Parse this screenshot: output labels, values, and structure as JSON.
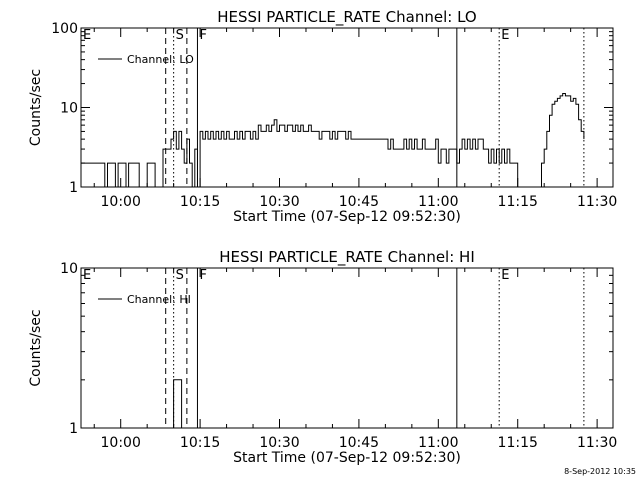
{
  "chart_data": [
    {
      "type": "line",
      "title": "HESSI PARTICLE_RATE Channel: LO",
      "xlabel": "Start Time (07-Sep-12 09:52:30)",
      "ylabel": "Counts/sec",
      "yscale": "log",
      "xlim": [
        "09:52:30",
        "11:33:00"
      ],
      "ylim": [
        1,
        100
      ],
      "x_ticks": [
        "10:00",
        "10:15",
        "10:30",
        "10:45",
        "11:00",
        "11:15",
        "11:30"
      ],
      "y_ticks": [
        "1",
        "10",
        "100"
      ],
      "legend": "top-left",
      "markers": [
        {
          "label": "E",
          "time": "09:52:30",
          "style": "none"
        },
        {
          "label": "",
          "time": "10:08:30",
          "style": "dashed"
        },
        {
          "label": "S",
          "time": "10:10:00",
          "style": "dotted"
        },
        {
          "label": "",
          "time": "10:12:30",
          "style": "dashed"
        },
        {
          "label": "F",
          "time": "10:14:30",
          "style": "solid"
        },
        {
          "label": "",
          "time": "11:03:30",
          "style": "solid"
        },
        {
          "label": "E",
          "time": "11:11:30",
          "style": "dotted"
        },
        {
          "label": "",
          "time": "11:27:30",
          "style": "dotted"
        }
      ],
      "series": [
        {
          "name": "Channel: LO",
          "points": [
            [
              "09:52:30",
              2
            ],
            [
              "09:56:30",
              2
            ],
            [
              "09:57:00",
              1
            ],
            [
              "09:57:30",
              2
            ],
            [
              "09:58:30",
              2
            ],
            [
              "09:59:00",
              1
            ],
            [
              "09:59:30",
              2
            ],
            [
              "10:00:30",
              2
            ],
            [
              "10:01:00",
              1
            ],
            [
              "10:01:30",
              2
            ],
            [
              "10:03:00",
              2
            ],
            [
              "10:03:30",
              1
            ],
            [
              "10:04:30",
              1
            ],
            [
              "10:05:00",
              2
            ],
            [
              "10:06:00",
              2
            ],
            [
              "10:06:30",
              1
            ],
            [
              "10:07:30",
              1
            ],
            [
              "10:08:00",
              3
            ],
            [
              "10:09:00",
              3
            ],
            [
              "10:09:30",
              4
            ],
            [
              "10:10:00",
              5
            ],
            [
              "10:10:30",
              3
            ],
            [
              "10:11:00",
              5
            ],
            [
              "10:11:30",
              3
            ],
            [
              "10:12:00",
              2
            ],
            [
              "10:12:30",
              4
            ],
            [
              "10:13:00",
              2
            ],
            [
              "10:13:30",
              1
            ],
            [
              "10:14:00",
              3
            ],
            [
              "10:14:30",
              1
            ],
            [
              "10:15:00",
              5
            ],
            [
              "10:15:30",
              4
            ],
            [
              "10:16:00",
              5
            ],
            [
              "10:16:30",
              4
            ],
            [
              "10:17:00",
              5
            ],
            [
              "10:17:30",
              4
            ],
            [
              "10:18:00",
              5
            ],
            [
              "10:18:30",
              4
            ],
            [
              "10:19:00",
              5
            ],
            [
              "10:19:30",
              4
            ],
            [
              "10:20:00",
              5
            ],
            [
              "10:20:30",
              4
            ],
            [
              "10:21:00",
              4
            ],
            [
              "10:21:30",
              5
            ],
            [
              "10:22:00",
              4
            ],
            [
              "10:22:30",
              5
            ],
            [
              "10:23:00",
              4
            ],
            [
              "10:23:30",
              5
            ],
            [
              "10:24:00",
              5
            ],
            [
              "10:24:30",
              4
            ],
            [
              "10:25:00",
              5
            ],
            [
              "10:25:30",
              4
            ],
            [
              "10:26:00",
              6
            ],
            [
              "10:26:30",
              5
            ],
            [
              "10:27:00",
              5
            ],
            [
              "10:27:30",
              6
            ],
            [
              "10:28:00",
              5
            ],
            [
              "10:28:30",
              6
            ],
            [
              "10:29:00",
              7
            ],
            [
              "10:29:30",
              5
            ],
            [
              "10:30:00",
              6
            ],
            [
              "10:30:30",
              6
            ],
            [
              "10:31:00",
              5
            ],
            [
              "10:31:30",
              6
            ],
            [
              "10:32:00",
              6
            ],
            [
              "10:32:30",
              5
            ],
            [
              "10:33:00",
              6
            ],
            [
              "10:33:30",
              5
            ],
            [
              "10:34:00",
              6
            ],
            [
              "10:34:30",
              5
            ],
            [
              "10:35:00",
              5
            ],
            [
              "10:35:30",
              6
            ],
            [
              "10:36:00",
              5
            ],
            [
              "10:36:30",
              5
            ],
            [
              "10:37:00",
              5
            ],
            [
              "10:37:30",
              4
            ],
            [
              "10:38:00",
              5
            ],
            [
              "10:39:00",
              5
            ],
            [
              "10:39:30",
              4
            ],
            [
              "10:40:00",
              5
            ],
            [
              "10:40:30",
              4
            ],
            [
              "10:41:00",
              5
            ],
            [
              "10:42:00",
              5
            ],
            [
              "10:42:30",
              4
            ],
            [
              "10:43:00",
              5
            ],
            [
              "10:43:30",
              4
            ],
            [
              "10:44:00",
              4
            ],
            [
              "10:45:00",
              4
            ],
            [
              "10:46:00",
              4
            ],
            [
              "10:47:00",
              4
            ],
            [
              "10:48:00",
              4
            ],
            [
              "10:49:00",
              4
            ],
            [
              "10:50:00",
              4
            ],
            [
              "10:50:30",
              3
            ],
            [
              "10:51:00",
              4
            ],
            [
              "10:51:30",
              3
            ],
            [
              "10:52:00",
              3
            ],
            [
              "10:53:00",
              3
            ],
            [
              "10:53:30",
              4
            ],
            [
              "10:54:00",
              3
            ],
            [
              "10:54:30",
              4
            ],
            [
              "10:55:00",
              3
            ],
            [
              "10:55:30",
              4
            ],
            [
              "10:56:00",
              3
            ],
            [
              "10:56:30",
              3
            ],
            [
              "10:57:00",
              4
            ],
            [
              "10:57:30",
              3
            ],
            [
              "10:58:00",
              3
            ],
            [
              "10:58:30",
              3
            ],
            [
              "10:59:00",
              3
            ],
            [
              "10:59:30",
              4
            ],
            [
              "11:00:00",
              2
            ],
            [
              "11:00:30",
              3
            ],
            [
              "11:01:00",
              3
            ],
            [
              "11:01:30",
              2
            ],
            [
              "11:02:00",
              3
            ],
            [
              "11:02:30",
              3
            ],
            [
              "11:03:00",
              3
            ],
            [
              "11:03:30",
              2
            ],
            [
              "11:04:00",
              3
            ],
            [
              "11:04:30",
              4
            ],
            [
              "11:05:00",
              3
            ],
            [
              "11:05:30",
              4
            ],
            [
              "11:06:00",
              3
            ],
            [
              "11:06:30",
              4
            ],
            [
              "11:07:00",
              3
            ],
            [
              "11:07:30",
              4
            ],
            [
              "11:08:00",
              4
            ],
            [
              "11:08:30",
              3
            ],
            [
              "11:09:00",
              3
            ],
            [
              "11:09:30",
              2
            ],
            [
              "11:10:00",
              3
            ],
            [
              "11:10:30",
              2
            ],
            [
              "11:11:00",
              3
            ],
            [
              "11:11:30",
              2
            ],
            [
              "11:12:00",
              3
            ],
            [
              "11:12:30",
              2
            ],
            [
              "11:13:00",
              3
            ],
            [
              "11:13:30",
              2
            ],
            [
              "11:14:00",
              2
            ],
            [
              "11:14:30",
              2
            ],
            [
              "11:15:00",
              1
            ],
            [
              "11:16:00",
              1
            ],
            [
              "11:17:00",
              1
            ],
            [
              "11:18:00",
              1
            ],
            [
              "11:19:00",
              1
            ],
            [
              "11:19:30",
              2
            ],
            [
              "11:20:00",
              3
            ],
            [
              "11:20:30",
              5
            ],
            [
              "11:21:00",
              8
            ],
            [
              "11:21:30",
              11
            ],
            [
              "11:22:00",
              12
            ],
            [
              "11:22:30",
              13
            ],
            [
              "11:23:00",
              14
            ],
            [
              "11:23:30",
              15
            ],
            [
              "11:24:00",
              14
            ],
            [
              "11:24:30",
              14
            ],
            [
              "11:25:00",
              12
            ],
            [
              "11:25:30",
              13
            ],
            [
              "11:26:00",
              11
            ],
            [
              "11:26:30",
              7
            ],
            [
              "11:27:00",
              5
            ],
            [
              "11:27:30",
              4
            ]
          ]
        }
      ]
    },
    {
      "type": "line",
      "title": "HESSI PARTICLE_RATE Channel: HI",
      "xlabel": "Start Time (07-Sep-12 09:52:30)",
      "ylabel": "Counts/sec",
      "yscale": "log",
      "xlim": [
        "09:52:30",
        "11:33:00"
      ],
      "ylim": [
        1,
        10
      ],
      "x_ticks": [
        "10:00",
        "10:15",
        "10:30",
        "10:45",
        "11:00",
        "11:15",
        "11:30"
      ],
      "y_ticks": [
        "1",
        "10"
      ],
      "legend": "top-left",
      "markers": [
        {
          "label": "E",
          "time": "09:52:30",
          "style": "none"
        },
        {
          "label": "",
          "time": "10:08:30",
          "style": "dashed"
        },
        {
          "label": "S",
          "time": "10:10:00",
          "style": "dotted"
        },
        {
          "label": "",
          "time": "10:12:30",
          "style": "dashed"
        },
        {
          "label": "F",
          "time": "10:14:30",
          "style": "solid"
        },
        {
          "label": "",
          "time": "11:03:30",
          "style": "solid"
        },
        {
          "label": "E",
          "time": "11:11:30",
          "style": "dotted"
        },
        {
          "label": "",
          "time": "11:27:30",
          "style": "dotted"
        }
      ],
      "series": [
        {
          "name": "Channel: HI",
          "points": [
            [
              "10:09:30",
              1
            ],
            [
              "10:10:00",
              2
            ],
            [
              "10:11:00",
              2
            ],
            [
              "10:11:30",
              1
            ]
          ]
        }
      ]
    }
  ],
  "footer": {
    "timestamp": "8-Sep-2012 10:35"
  }
}
